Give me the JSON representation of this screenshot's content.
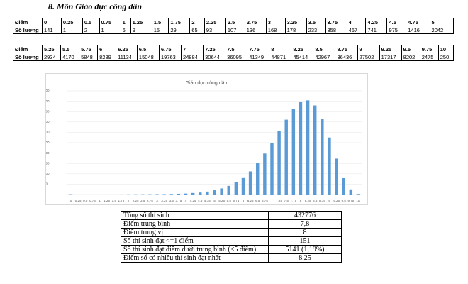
{
  "heading": "8. Môn Giáo dục công dân",
  "table1": {
    "score_label": "Điểm",
    "count_label": "Số lượng",
    "scores": [
      "0",
      "0.25",
      "0.5",
      "0.75",
      "1",
      "1.25",
      "1.5",
      "1.75",
      "2",
      "2.25",
      "2.5",
      "2.75",
      "3",
      "3.25",
      "3.5",
      "3.75",
      "4",
      "4.25",
      "4.5",
      "4.75",
      "5"
    ],
    "counts": [
      141,
      1,
      2,
      1,
      6,
      9,
      15,
      29,
      65,
      93,
      107,
      136,
      168,
      178,
      233,
      358,
      467,
      741,
      975,
      1416,
      2042
    ]
  },
  "table2": {
    "score_label": "Điểm",
    "count_label": "Số lượng",
    "scores": [
      "5.25",
      "5.5",
      "5.75",
      "6",
      "6.25",
      "6.5",
      "6.75",
      "7",
      "7.25",
      "7.5",
      "7.75",
      "8",
      "8.25",
      "8.5",
      "8.75",
      "9",
      "9.25",
      "9.5",
      "9.75",
      "10"
    ],
    "counts": [
      2934,
      4170,
      5848,
      8289,
      11134,
      15048,
      19763,
      24884,
      30644,
      36095,
      41349,
      44871,
      45414,
      42967,
      36436,
      27502,
      17317,
      8202,
      2475,
      250
    ]
  },
  "chart_data": {
    "type": "bar",
    "title": "Giáo dục công dân",
    "color": "#5b9bd5",
    "categories": [
      "0",
      "0.25",
      "0.5",
      "0.75",
      "1",
      "1.25",
      "1.5",
      "1.75",
      "2",
      "2.25",
      "2.5",
      "2.75",
      "3",
      "3.25",
      "3.5",
      "3.75",
      "4",
      "4.25",
      "4.5",
      "4.75",
      "5",
      "5.25",
      "5.5",
      "5.75",
      "6",
      "6.25",
      "6.5",
      "6.75",
      "7",
      "7.25",
      "7.5",
      "7.75",
      "8",
      "8.25",
      "8.5",
      "8.75",
      "9",
      "9.25",
      "9.5",
      "9.75",
      "10"
    ],
    "values": [
      141,
      1,
      2,
      1,
      6,
      9,
      15,
      29,
      65,
      93,
      107,
      136,
      168,
      178,
      233,
      358,
      467,
      741,
      975,
      1416,
      2042,
      2934,
      4170,
      5848,
      8289,
      11134,
      15048,
      19763,
      24884,
      30644,
      36095,
      41349,
      44871,
      45414,
      42967,
      36436,
      27502,
      17317,
      8202,
      2475,
      250
    ],
    "ylim": [
      0,
      50000
    ],
    "yticks": [
      0,
      5000,
      10000,
      15000,
      20000,
      25000,
      30000,
      35000,
      40000,
      45000,
      50000
    ],
    "grid": true
  },
  "summary": {
    "rows": [
      [
        "Tổng số thí sinh",
        "432776"
      ],
      [
        "Điểm trung bình",
        "7,8"
      ],
      [
        "Điểm trung vị",
        "8"
      ],
      [
        "Số thí sinh đạt <=1 điểm",
        "151"
      ],
      [
        "Số thí sinh đạt điểm dưới trung bình (<5 điểm)",
        "5141 (1,19%)"
      ],
      [
        "Điểm số có nhiều thí sinh đạt nhất",
        "8,25"
      ]
    ]
  }
}
